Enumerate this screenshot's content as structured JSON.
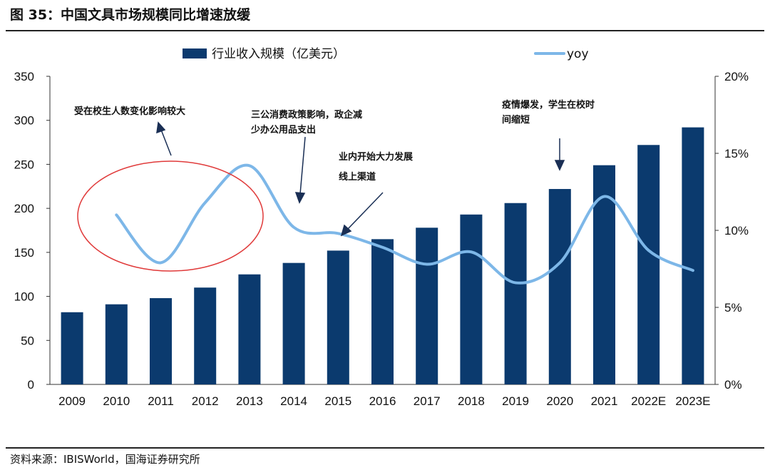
{
  "header": {
    "title": "图 35：中国文具市场规模同比增速放缓"
  },
  "footer": {
    "source": "资料来源：IBISWorld，国海证券研究所"
  },
  "chart_data": {
    "type": "bar",
    "categories": [
      "2009",
      "2010",
      "2011",
      "2012",
      "2013",
      "2014",
      "2015",
      "2016",
      "2017",
      "2018",
      "2019",
      "2020",
      "2021",
      "2022E",
      "2023E"
    ],
    "series": [
      {
        "name": "行业收入规模（亿美元）",
        "type": "bar",
        "axis": "left",
        "values": [
          82,
          91,
          98,
          110,
          125,
          138,
          152,
          165,
          178,
          193,
          206,
          222,
          249,
          272,
          292
        ]
      },
      {
        "name": "yoy",
        "type": "line",
        "axis": "right",
        "values": [
          null,
          11.0,
          7.9,
          11.8,
          14.2,
          10.2,
          9.8,
          8.9,
          7.8,
          8.6,
          6.6,
          7.9,
          12.2,
          8.7,
          7.4
        ]
      }
    ],
    "left_axis": {
      "min": 0,
      "max": 350,
      "ticks": [
        "0",
        "50",
        "100",
        "150",
        "200",
        "250",
        "300",
        "350"
      ]
    },
    "right_axis": {
      "min": 0,
      "max": 20,
      "ticks": [
        "0%",
        "5%",
        "10%",
        "15%",
        "20%"
      ]
    },
    "colors": {
      "bar": "#0b3a6e",
      "line": "#7db7e8",
      "ellipse": "#e03a3a"
    },
    "annotations": [
      {
        "lines": [
          "受在校生人数变化影响较大"
        ]
      },
      {
        "lines": [
          "三公消费政策影响，政企减",
          "少办公用品支出"
        ]
      },
      {
        "lines": [
          "业内开始大力发展"
        ]
      },
      {
        "lines": [
          "线上渠道"
        ]
      },
      {
        "lines": [
          "疫情爆发，学生在校时",
          "间缩短"
        ]
      }
    ]
  }
}
